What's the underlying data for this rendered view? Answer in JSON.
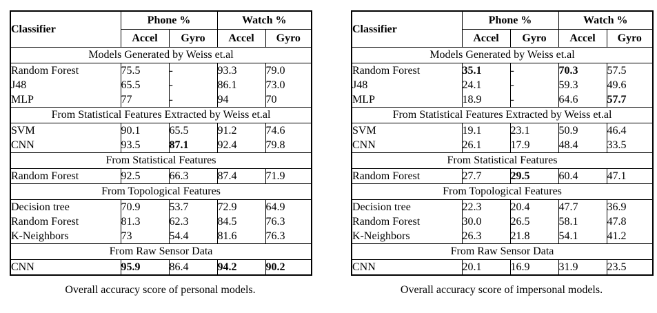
{
  "page": {
    "background": "#ffffff",
    "text_color": "#000000",
    "border_color": "#000000"
  },
  "tables": [
    {
      "id": "personal",
      "caption": "Overall accuracy score of personal models.",
      "header": {
        "classifier": "Classifier",
        "groups": [
          {
            "label": "Phone %"
          },
          {
            "label": "Watch %"
          }
        ],
        "sub": [
          "Accel",
          "Gyro",
          "Accel",
          "Gyro"
        ]
      },
      "sections": [
        {
          "title": "Models Generated by Weiss et.al",
          "rows": [
            {
              "classifier": "Random Forest",
              "values": [
                "75.5",
                "-",
                "93.3",
                "79.0"
              ],
              "bold": [
                false,
                false,
                false,
                false
              ]
            },
            {
              "classifier": "J48",
              "values": [
                "65.5",
                "-",
                "86.1",
                "73.0"
              ],
              "bold": [
                false,
                false,
                false,
                false
              ]
            },
            {
              "classifier": "MLP",
              "values": [
                "77",
                "-",
                "94",
                "70"
              ],
              "bold": [
                false,
                false,
                false,
                false
              ]
            }
          ]
        },
        {
          "title": "From Statistical Features Extracted by Weiss et.al",
          "rows": [
            {
              "classifier": "SVM",
              "values": [
                "90.1",
                "65.5",
                "91.2",
                "74.6"
              ],
              "bold": [
                false,
                false,
                false,
                false
              ]
            },
            {
              "classifier": "CNN",
              "values": [
                "93.5",
                "87.1",
                "92.4",
                "79.8"
              ],
              "bold": [
                false,
                true,
                false,
                false
              ]
            }
          ]
        },
        {
          "title": "From Statistical Features",
          "rows": [
            {
              "classifier": "Random Forest",
              "values": [
                "92.5",
                "66.3",
                "87.4",
                "71.9"
              ],
              "bold": [
                false,
                false,
                false,
                false
              ]
            }
          ]
        },
        {
          "title": "From Topological Features",
          "rows": [
            {
              "classifier": "Decision tree",
              "values": [
                "70.9",
                "53.7",
                "72.9",
                "64.9"
              ],
              "bold": [
                false,
                false,
                false,
                false
              ]
            },
            {
              "classifier": "Random Forest",
              "values": [
                "81.3",
                "62.3",
                "84.5",
                "76.3"
              ],
              "bold": [
                false,
                false,
                false,
                false
              ]
            },
            {
              "classifier": "K-Neighbors",
              "values": [
                "73",
                "54.4",
                "81.6",
                "76.3"
              ],
              "bold": [
                false,
                false,
                false,
                false
              ]
            }
          ]
        },
        {
          "title": "From Raw Sensor Data",
          "rows": [
            {
              "classifier": "CNN",
              "values": [
                "95.9",
                "86.4",
                "94.2",
                "90.2"
              ],
              "bold": [
                true,
                false,
                true,
                true
              ]
            }
          ]
        }
      ]
    },
    {
      "id": "impersonal",
      "caption": "Overall accuracy score of impersonal models.",
      "header": {
        "classifier": "Classifier",
        "groups": [
          {
            "label": "Phone %"
          },
          {
            "label": "Watch %"
          }
        ],
        "sub": [
          "Accel",
          "Gyro",
          "Accel",
          "Gyro"
        ]
      },
      "sections": [
        {
          "title": "Models Generated by Weiss et.al",
          "rows": [
            {
              "classifier": "Random Forest",
              "values": [
                "35.1",
                "-",
                "70.3",
                "57.5"
              ],
              "bold": [
                true,
                false,
                true,
                false
              ]
            },
            {
              "classifier": "J48",
              "values": [
                "24.1",
                "-",
                "59.3",
                "49.6"
              ],
              "bold": [
                false,
                false,
                false,
                false
              ]
            },
            {
              "classifier": "MLP",
              "values": [
                "18.9",
                "-",
                "64.6",
                "57.7"
              ],
              "bold": [
                false,
                false,
                false,
                true
              ]
            }
          ]
        },
        {
          "title": "From Statistical Features Extracted by Weiss et.al",
          "rows": [
            {
              "classifier": "SVM",
              "values": [
                "19.1",
                "23.1",
                "50.9",
                "46.4"
              ],
              "bold": [
                false,
                false,
                false,
                false
              ]
            },
            {
              "classifier": "CNN",
              "values": [
                "26.1",
                "17.9",
                "48.4",
                "33.5"
              ],
              "bold": [
                false,
                false,
                false,
                false
              ]
            }
          ]
        },
        {
          "title": "From Statistical Features",
          "rows": [
            {
              "classifier": "Random Forest",
              "values": [
                "27.7",
                "29.5",
                "60.4",
                "47.1"
              ],
              "bold": [
                false,
                true,
                false,
                false
              ]
            }
          ]
        },
        {
          "title": "From Topological Features",
          "rows": [
            {
              "classifier": "Decision tree",
              "values": [
                "22.3",
                "20.4",
                "47.7",
                "36.9"
              ],
              "bold": [
                false,
                false,
                false,
                false
              ]
            },
            {
              "classifier": "Random Forest",
              "values": [
                "30.0",
                "26.5",
                "58.1",
                "47.8"
              ],
              "bold": [
                false,
                false,
                false,
                false
              ]
            },
            {
              "classifier": "K-Neighbors",
              "values": [
                "26.3",
                "21.8",
                "54.1",
                "41.2"
              ],
              "bold": [
                false,
                false,
                false,
                false
              ]
            }
          ]
        },
        {
          "title": "From Raw Sensor Data",
          "rows": [
            {
              "classifier": "CNN",
              "values": [
                "20.1",
                "16.9",
                "31.9",
                "23.5"
              ],
              "bold": [
                false,
                false,
                false,
                false
              ]
            }
          ]
        }
      ]
    }
  ]
}
